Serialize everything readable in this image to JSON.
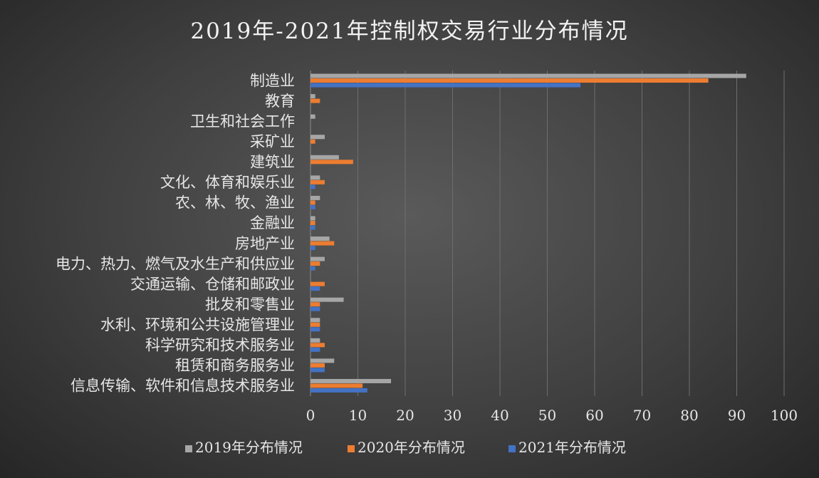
{
  "chart_data": {
    "type": "bar",
    "orientation": "horizontal",
    "title": "2019年-2021年控制权交易行业分布情况",
    "categories": [
      "制造业",
      "教育",
      "卫生和社会工作",
      "采矿业",
      "建筑业",
      "文化、体育和娱乐业",
      "农、林、牧、渔业",
      "金融业",
      "房地产业",
      "电力、热力、燃气及水生产和供应业",
      "交通运输、仓储和邮政业",
      "批发和零售业",
      "水利、环境和公共设施管理业",
      "科学研究和技术服务业",
      "租赁和商务服务业",
      "信息传输、软件和信息技术服务业"
    ],
    "series": [
      {
        "name": "2019年分布情况",
        "color": "#a6a6a6",
        "values": [
          92,
          1,
          1,
          3,
          6,
          2,
          2,
          1,
          4,
          3,
          0,
          7,
          2,
          2,
          5,
          17
        ]
      },
      {
        "name": "2020年分布情况",
        "color": "#ed7d31",
        "values": [
          84,
          2,
          0,
          1,
          9,
          3,
          1,
          1,
          5,
          2,
          3,
          2,
          2,
          3,
          3,
          11
        ]
      },
      {
        "name": "2021年分布情况",
        "color": "#4472c4",
        "values": [
          57,
          0,
          0,
          0,
          0,
          1,
          1,
          1,
          1,
          1,
          2,
          2,
          2,
          2,
          3,
          12
        ]
      }
    ],
    "xlim": [
      0,
      100
    ],
    "xticks": [
      0,
      10,
      20,
      30,
      40,
      50,
      60,
      70,
      80,
      90,
      100
    ],
    "grid": true,
    "legend_position": "bottom"
  }
}
